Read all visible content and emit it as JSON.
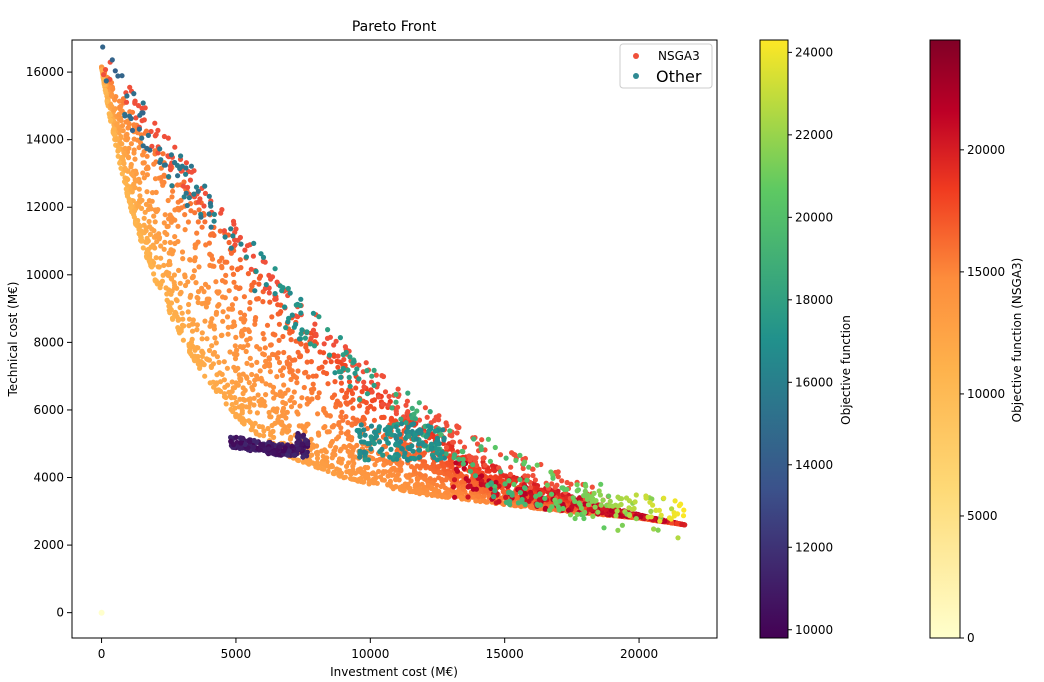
{
  "chart_data": {
    "type": "scatter",
    "title": "Pareto Front",
    "xlabel": "Investment cost (M€)",
    "ylabel": "Technical cost (M€)",
    "xlim": [
      -1100,
      22900
    ],
    "ylim": [
      -750,
      16950
    ],
    "x_ticks": [
      0,
      5000,
      10000,
      15000,
      20000
    ],
    "y_ticks": [
      0,
      2000,
      4000,
      6000,
      8000,
      10000,
      12000,
      14000,
      16000
    ],
    "grid": false,
    "legend_position": "top-right",
    "legend": [
      {
        "label": "NSGA3",
        "color": "#f0503a"
      },
      {
        "label": "Other",
        "color": "#2f8a93"
      }
    ],
    "series": [
      {
        "name": "NSGA3",
        "colormap": "YlOrRd",
        "colorbar_label": "Objective function (NSGA3)",
        "colorbar_range": [
          0,
          24500
        ],
        "colorbar_ticks": [
          0,
          5000,
          10000,
          15000,
          20000
        ],
        "front": [
          [
            0,
            16150
          ],
          [
            250,
            14900
          ],
          [
            500,
            13900
          ],
          [
            1000,
            12200
          ],
          [
            1500,
            10900
          ],
          [
            2000,
            9800
          ],
          [
            2500,
            8900
          ],
          [
            3000,
            8100
          ],
          [
            3500,
            7400
          ],
          [
            4000,
            6800
          ],
          [
            5000,
            5800
          ],
          [
            6000,
            5100
          ],
          [
            7000,
            4600
          ],
          [
            8000,
            4300
          ],
          [
            9000,
            4000
          ],
          [
            10000,
            3800
          ],
          [
            12000,
            3500
          ],
          [
            14000,
            3300
          ],
          [
            16000,
            3100
          ],
          [
            18000,
            2950
          ],
          [
            20000,
            2800
          ],
          [
            21700,
            2600
          ]
        ],
        "outer_edge": [
          [
            0,
            16150
          ],
          [
            1000,
            15000
          ],
          [
            2000,
            13900
          ],
          [
            3000,
            12900
          ],
          [
            4000,
            11900
          ],
          [
            5000,
            10900
          ],
          [
            6000,
            9900
          ],
          [
            7000,
            9000
          ],
          [
            8000,
            8200
          ],
          [
            9000,
            7400
          ],
          [
            10000,
            6700
          ],
          [
            11000,
            6100
          ],
          [
            12000,
            5500
          ],
          [
            13000,
            5000
          ],
          [
            14000,
            4600
          ],
          [
            15000,
            4200
          ],
          [
            16000,
            3900
          ],
          [
            17000,
            3600
          ],
          [
            18000,
            3350
          ],
          [
            19000,
            3100
          ],
          [
            20000,
            2900
          ],
          [
            21700,
            2600
          ]
        ],
        "extreme_point": [
          0,
          0
        ]
      },
      {
        "name": "Other",
        "colormap": "viridis",
        "colorbar_label": "Objective function",
        "colorbar_range": [
          9800,
          24300
        ],
        "colorbar_ticks": [
          10000,
          12000,
          14000,
          16000,
          18000,
          20000,
          22000,
          24000
        ],
        "cluster_low": {
          "x_range": [
            4800,
            7700
          ],
          "y_range": [
            4600,
            5400
          ]
        }
      }
    ]
  }
}
